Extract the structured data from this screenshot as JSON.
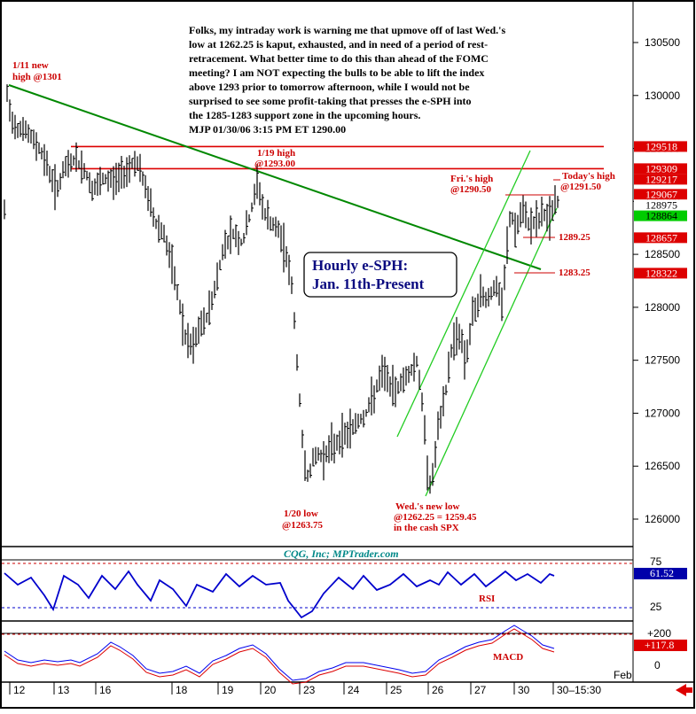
{
  "chart_data": {
    "type": "line",
    "panels": [
      {
        "name": "price",
        "series": [],
        "ylim": [
          1259.0,
          1307.5
        ],
        "yticks": [
          1260.0,
          1265.0,
          1270.0,
          1275.0,
          1280.0,
          1285.0,
          1290.0,
          1295.0,
          1300.0,
          1305.0
        ],
        "ytick_labels": [
          "126000",
          "126500",
          "127000",
          "127500",
          "128000",
          "128500",
          "129000",
          "129500",
          "130000",
          "130500"
        ],
        "price_flags": [
          {
            "label": "129518",
            "value": 1295.18,
            "bg": "#dd0000",
            "fg": "#ffffff"
          },
          {
            "label": "129309",
            "value": 1293.09,
            "bg": "#dd0000",
            "fg": "#ffffff"
          },
          {
            "label": "129217",
            "value": 1292.17,
            "bg": "#dd0000",
            "fg": "#ffffff"
          },
          {
            "label": "129067",
            "value": 1290.67,
            "bg": "#dd0000",
            "fg": "#ffffff"
          },
          {
            "label": "128975",
            "value": 1289.75,
            "bg": "#ffffff",
            "fg": "#000000"
          },
          {
            "label": "128864",
            "value": 1288.64,
            "bg": "#00cc00",
            "fg": "#000000"
          },
          {
            "label": "128657",
            "value": 1286.57,
            "bg": "#dd0000",
            "fg": "#ffffff"
          },
          {
            "label": "128322",
            "value": 1283.22,
            "bg": "#dd0000",
            "fg": "#ffffff"
          }
        ],
        "hlines": [
          {
            "value": 1295.18,
            "x_from": 80,
            "color": "#dd0000"
          },
          {
            "value": 1293.09,
            "x_from": 80,
            "color": "#dd0000"
          }
        ]
      },
      {
        "name": "RSI",
        "ylim": [
          10,
          85
        ],
        "ref_lines": [
          75,
          25
        ],
        "ytick_labels": [
          "75",
          "25"
        ],
        "last_value_label": "61.52",
        "series_label": "RSI"
      },
      {
        "name": "MACD",
        "ylim": [
          -60,
          240
        ],
        "ytick_labels": [
          "+200",
          "0"
        ],
        "last_value_label": "+117.8",
        "series_label": "MACD"
      }
    ],
    "x_labels": [
      "12",
      "13",
      "16",
      "18",
      "19",
      "20",
      "23",
      "24",
      "25",
      "26",
      "27",
      "30",
      "30–15:30"
    ],
    "x_month_label": "Feb",
    "source_label": "CQG, Inc; MPTrader.com",
    "chart_title": [
      "Hourly e-SPH:",
      "Jan. 11th-Present"
    ],
    "commentary": [
      "Folks, my intraday work is warning me that upmove off of last Wed.'s",
      "low at 1262.25 is kaput, exhausted, and in need of a period of rest-",
      "retracement. What better time to do this than ahead of the FOMC",
      "meeting? I am NOT expecting the bulls to be able to lift the index",
      "above 1293 prior to tomorrow afternoon, while I would not be",
      "surprised to see some profit-taking that presses the e-SPH into",
      "the 1285-1283 support zone in the upcoming hours.",
      "MJP  01/30/06  3:15 PM ET  1290.00"
    ],
    "annotations": [
      {
        "lines": [
          "1/11 new",
          "high @1301"
        ]
      },
      {
        "lines": [
          "1/19 high",
          "@1293.00"
        ]
      },
      {
        "lines": [
          "1/20 low",
          "@1263.75"
        ]
      },
      {
        "lines": [
          "Wed.'s new low",
          "@1262.25 = 1259.45",
          "in the cash SPX"
        ]
      },
      {
        "lines": [
          "Fri.'s high",
          "@1290.50"
        ]
      },
      {
        "lines": [
          "Today's high",
          "@1291.50"
        ]
      },
      {
        "lines": [
          "1289.25"
        ]
      },
      {
        "lines": [
          "1283.25"
        ]
      }
    ],
    "colors": {
      "bars": "#000000",
      "trendline": "#008800",
      "channel": "#22cc22",
      "resistance": "#dd0000",
      "rsi": "#0000cc",
      "macd": "#0000ee",
      "signal": "#dd0000",
      "note_red": "#cc0000"
    }
  }
}
